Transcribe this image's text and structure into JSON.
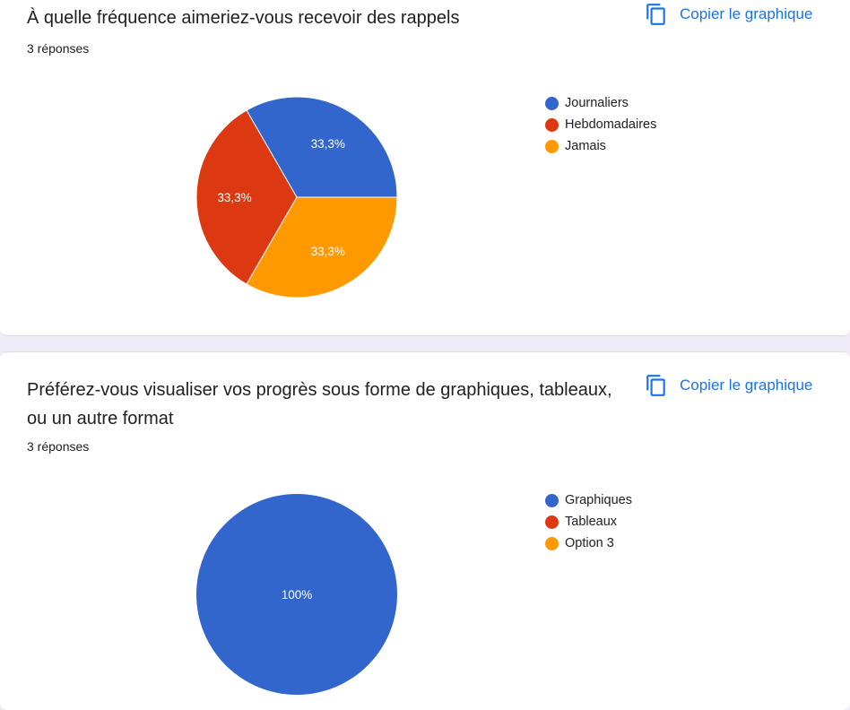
{
  "cards": [
    {
      "title": "À quelle fréquence aimeriez-vous recevoir des rappels",
      "responses": "3 réponses",
      "copy_label": "Copier le graphique",
      "chart_data": {
        "type": "pie",
        "categories": [
          "Journaliers",
          "Hebdomadaires",
          "Jamais"
        ],
        "values": [
          33.3,
          33.3,
          33.3
        ],
        "labels": [
          "33,3%",
          "33,3%",
          "33,3%"
        ],
        "colors": [
          "#3366cc",
          "#dc3912",
          "#ff9900"
        ],
        "legend": "right"
      }
    },
    {
      "title": "Préférez-vous visualiser vos progrès sous forme de graphiques, tableaux, ou un autre format",
      "responses": "3 réponses",
      "copy_label": "Copier le graphique",
      "chart_data": {
        "type": "pie",
        "categories": [
          "Graphiques",
          "Tableaux",
          "Option 3"
        ],
        "values": [
          100,
          0,
          0
        ],
        "labels": [
          "100%",
          "",
          ""
        ],
        "colors": [
          "#3366cc",
          "#dc3912",
          "#ff9900"
        ],
        "legend": "right"
      }
    }
  ],
  "icons": {
    "copy": "copy-icon",
    "legend_marker": "circle"
  }
}
